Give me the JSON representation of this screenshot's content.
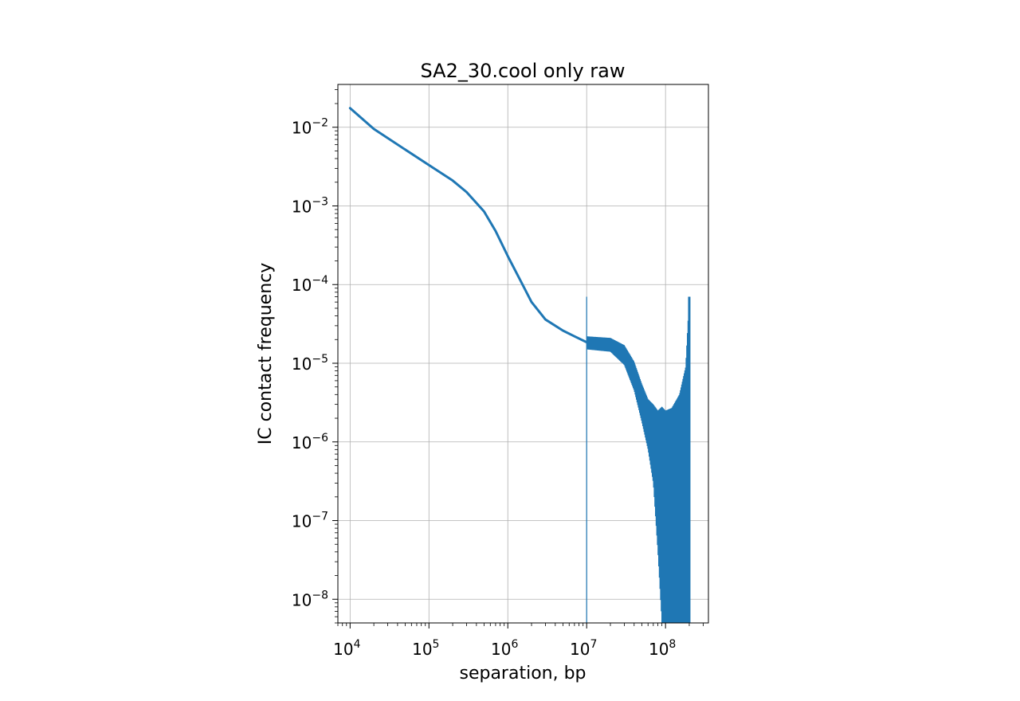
{
  "chart_data": {
    "type": "line",
    "title": "SA2_30.cool only raw",
    "xlabel": "separation, bp",
    "ylabel": "IC contact frequency",
    "xscale": "log",
    "yscale": "log",
    "xlim": [
      7000,
      350000000
    ],
    "ylim": [
      5e-09,
      0.035
    ],
    "grid": true,
    "x_ticks": [
      {
        "base": "10",
        "exp": "4",
        "value": 10000
      },
      {
        "base": "10",
        "exp": "5",
        "value": 100000
      },
      {
        "base": "10",
        "exp": "6",
        "value": 1000000
      },
      {
        "base": "10",
        "exp": "7",
        "value": 10000000
      },
      {
        "base": "10",
        "exp": "8",
        "value": 100000000
      }
    ],
    "y_ticks": [
      {
        "base": "10",
        "exp": "−2",
        "value": 0.01
      },
      {
        "base": "10",
        "exp": "−3",
        "value": 0.001
      },
      {
        "base": "10",
        "exp": "−4",
        "value": 0.0001
      },
      {
        "base": "10",
        "exp": "−5",
        "value": 1e-05
      },
      {
        "base": "10",
        "exp": "−6",
        "value": 1e-06
      },
      {
        "base": "10",
        "exp": "−7",
        "value": 1e-07
      },
      {
        "base": "10",
        "exp": "−8",
        "value": 1e-08
      }
    ],
    "series": [
      {
        "color": "#1f77b4",
        "x": [
          10000,
          20000,
          50000,
          100000,
          200000,
          300000,
          500000,
          700000,
          1000000,
          1500000,
          2000000,
          3000000,
          5000000,
          7000000,
          10000000,
          15000000,
          20000000,
          25000000,
          30000000,
          40000000,
          50000000,
          60000000,
          70000000
        ],
        "y": [
          0.0175,
          0.0095,
          0.0052,
          0.0033,
          0.0021,
          0.0015,
          0.00085,
          0.00048,
          0.00023,
          0.000105,
          6e-05,
          3.6e-05,
          2.6e-05,
          2.2e-05,
          1.85e-05,
          1.72e-05,
          1.65e-05,
          1.45e-05,
          1.15e-05,
          6.5e-06,
          3.5e-06,
          2.2e-06,
          1.5e-06
        ],
        "noise_envelope": {
          "x": [
            10000000,
            20000000,
            30000000,
            40000000,
            50000000,
            60000000,
            70000000,
            80000000,
            90000000,
            100000000,
            120000000,
            150000000,
            180000000,
            200000000
          ],
          "upper": [
            2.2e-05,
            2.1e-05,
            1.7e-05,
            1.05e-05,
            5.5e-06,
            3.5e-06,
            3e-06,
            2.5e-06,
            2.8e-06,
            2.5e-06,
            2.7e-06,
            4e-06,
            9e-06,
            7e-05
          ],
          "lower": [
            1.5e-05,
            1.4e-05,
            9.5e-06,
            4.5e-06,
            1.8e-06,
            8e-07,
            3e-07,
            4e-08,
            5e-09,
            5e-09,
            5e-09,
            5e-09,
            5e-09,
            5e-09
          ]
        }
      }
    ]
  }
}
